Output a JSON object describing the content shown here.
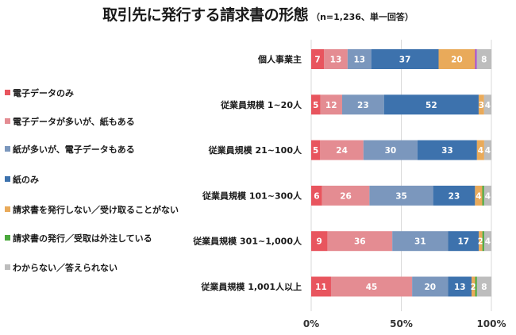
{
  "chart_data": {
    "type": "bar",
    "orientation": "horizontal",
    "stacked": "percent",
    "title": "取引先に発行する請求書の形態",
    "subtitle": "（n=1,236、単一回答）",
    "xlabel": "",
    "ylabel": "",
    "xlim": [
      0,
      100
    ],
    "x_ticks": [
      "0%",
      "50%",
      "100%"
    ],
    "grid": true,
    "legend_position": "left",
    "categories": [
      "個人事業主",
      "従業員規模 1~20人",
      "従業員規模 21~100人",
      "従業員規模 101~300人",
      "従業員規模 301~1,000人",
      "従業員規模 1,001人以上"
    ],
    "series": [
      {
        "name": "電子データのみ",
        "color": "#e8555e",
        "values": [
          7,
          5,
          5,
          6,
          9,
          11
        ]
      },
      {
        "name": "電子データが多いが、紙もある",
        "color": "#e48c92",
        "values": [
          13,
          12,
          24,
          26,
          36,
          45
        ]
      },
      {
        "name": "紙が多いが、電子データもある",
        "color": "#7b97bd",
        "values": [
          13,
          23,
          30,
          35,
          31,
          20
        ]
      },
      {
        "name": "紙のみ",
        "color": "#3d72ad",
        "values": [
          37,
          52,
          33,
          23,
          17,
          13
        ]
      },
      {
        "name": "請求書を発行しない／受け取ることがない",
        "color": "#e9aa5a",
        "values": [
          20,
          3,
          4,
          4,
          2,
          2
        ]
      },
      {
        "name": "請求書の発行／受取は外注している",
        "color": "#4aa83c",
        "values": [
          0,
          0,
          0,
          1,
          1,
          1
        ]
      },
      {
        "name": "わからない／答えられない",
        "color": "#bdbdbd",
        "values": [
          8,
          4,
          4,
          4,
          4,
          8
        ]
      }
    ],
    "extra_segment": {
      "category": "個人事業主",
      "color": "#a64ccf",
      "value": 1
    },
    "labels": [
      [
        "7",
        "13",
        "13",
        "37",
        "20",
        "",
        "8"
      ],
      [
        "5",
        "12",
        "23",
        "52",
        "3",
        "",
        "4"
      ],
      [
        "5",
        "24",
        "30",
        "33",
        "4",
        "",
        "4"
      ],
      [
        "6",
        "26",
        "35",
        "23",
        "4",
        "",
        "4"
      ],
      [
        "9",
        "36",
        "31",
        "17",
        "2",
        "",
        "4"
      ],
      [
        "11",
        "45",
        "20",
        "13",
        "2",
        "",
        "8"
      ]
    ]
  }
}
